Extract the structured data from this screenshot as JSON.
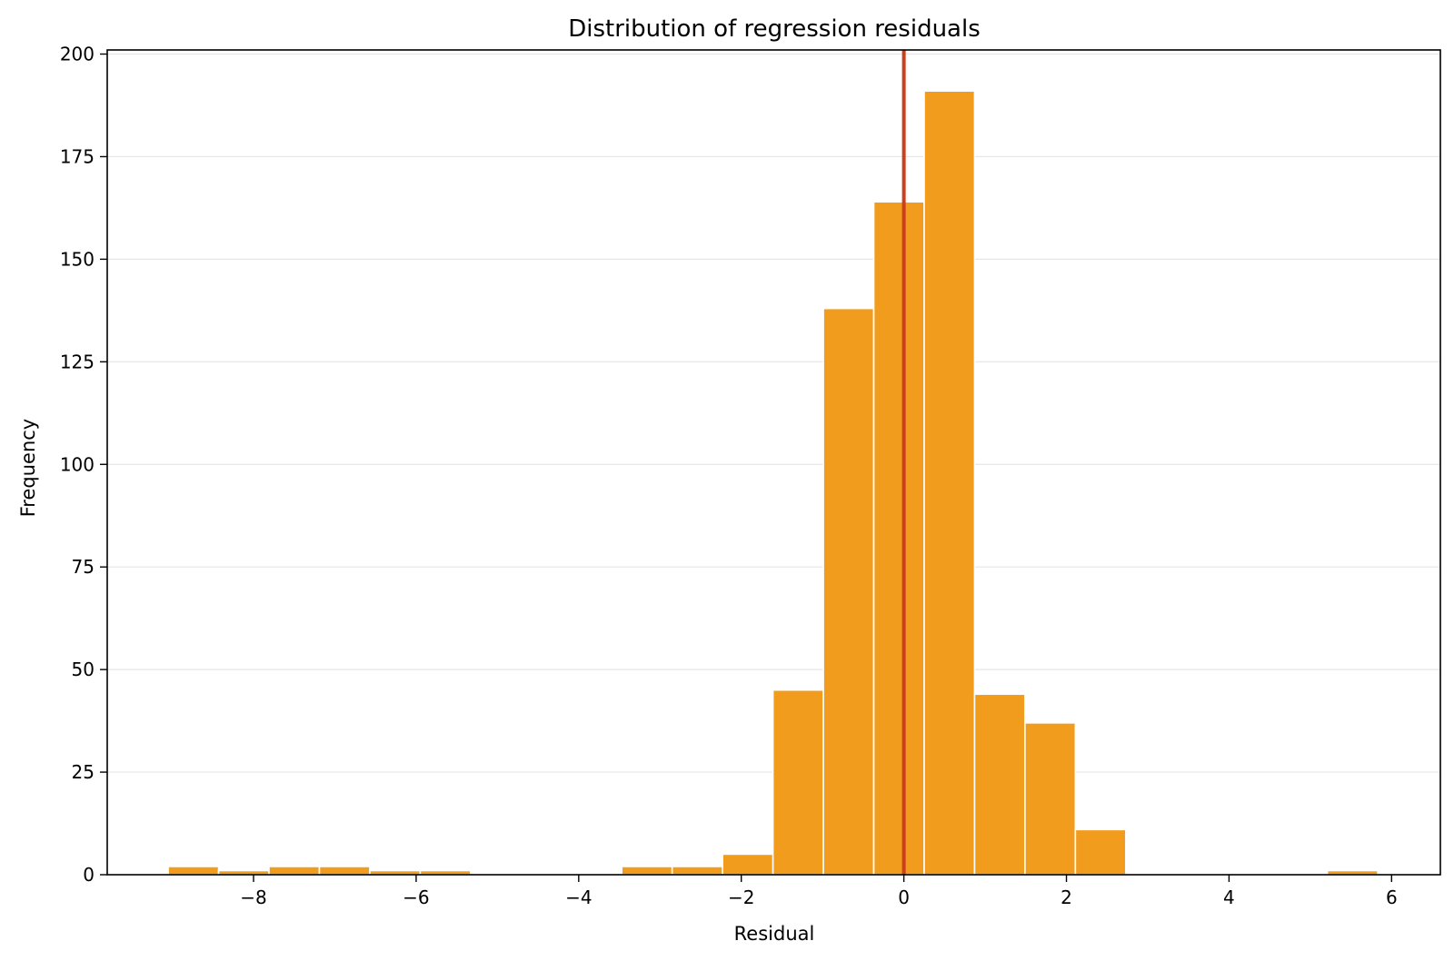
{
  "chart_data": {
    "type": "bar",
    "title": "Distribution of regression residuals",
    "xlabel": "Residual",
    "ylabel": "Frequency",
    "xlim": [
      -9.8,
      6.6
    ],
    "ylim": [
      0,
      201
    ],
    "xticks": [
      -8,
      -6,
      -4,
      -2,
      0,
      2,
      4,
      6
    ],
    "xtick_labels": [
      "−8",
      "−6",
      "−4",
      "−2",
      "0",
      "2",
      "4",
      "6"
    ],
    "yticks": [
      0,
      25,
      50,
      75,
      100,
      125,
      150,
      175,
      200
    ],
    "ytick_labels": [
      "0",
      "25",
      "50",
      "75",
      "100",
      "125",
      "150",
      "175",
      "200"
    ],
    "bin_edges": [
      -9.05,
      -8.43,
      -7.81,
      -7.19,
      -6.57,
      -5.95,
      -5.33,
      -4.71,
      -4.09,
      -3.47,
      -2.85,
      -2.23,
      -1.61,
      -0.99,
      -0.37,
      0.25,
      0.87,
      1.49,
      2.11,
      2.73,
      3.35,
      3.97,
      4.59,
      5.21,
      5.83
    ],
    "counts": [
      2,
      1,
      2,
      2,
      1,
      1,
      0,
      0,
      0,
      2,
      2,
      5,
      45,
      138,
      164,
      191,
      44,
      37,
      11,
      0,
      0,
      0,
      0,
      1
    ],
    "vline_x": 0,
    "bar_color": "#f29c1e",
    "vline_color": "#cc3f1e",
    "grid": "horizontal"
  }
}
